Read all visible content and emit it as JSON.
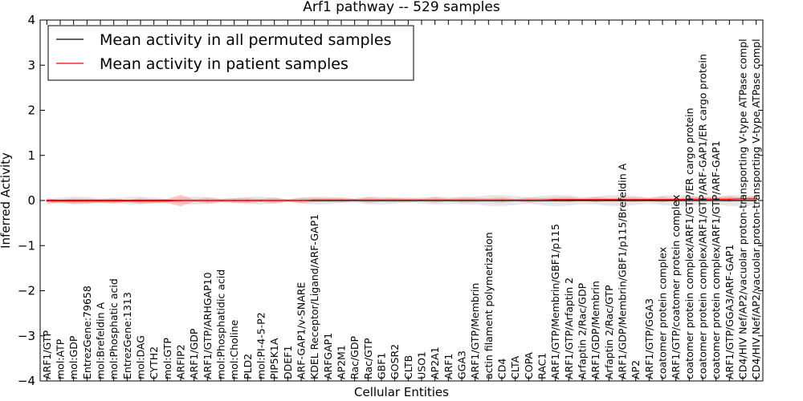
{
  "chart_data": {
    "type": "line",
    "title": "Arf1 pathway -- 529 samples",
    "xlabel": "Cellular Entities",
    "ylabel": "Inferred Activity",
    "ylim": [
      -4,
      4
    ],
    "yticks": [
      -4,
      -3,
      -2,
      -1,
      0,
      1,
      2,
      3,
      4
    ],
    "ytick_labels": [
      "−4",
      "−3",
      "−2",
      "−1",
      "0",
      "1",
      "2",
      "3",
      "4"
    ],
    "grid": false,
    "legend_position": "top-left",
    "categories": [
      "ARF1/GTP",
      "mol:ATP",
      "mol:GDP",
      "EntrezGene:79658",
      "mol:Brefeldin A",
      "mol:Phosphatic acid",
      "EntrezGene:1313",
      "mol:DAG",
      "CYTH2",
      "mol:GTP",
      "ARFIP2",
      "ARF1/GDP",
      "ARF1/GTP/ARHGAP10",
      "mol:Phosphatidic acid",
      "mol:Choline",
      "PLD2",
      "mol:PI-4-5-P2",
      "PIP5K1A",
      "DDEF1",
      "ARF-GAP1/v-SNARE",
      "KDEL Receptor/Ligand/ARF-GAP1",
      "ARFGAP1",
      "AP2M1",
      "Rac/GDP",
      "Rac/GTP",
      "GBF1",
      "GOSR2",
      "CLTB",
      "USO1",
      "AP2A1",
      "ARF1",
      "GGA3",
      "ARF1/GTP/Membrin",
      "actin filament polymerization",
      "CD4",
      "CLTA",
      "COPA",
      "RAC1",
      "ARF1/GTP/Membrin/GBF1/p115",
      "ARF1/GTP/Arfaptin 2",
      "Arfaptin 2/Rac/GDP",
      "ARF1/GDP/Membrin",
      "Arfaptin 2/Rac/GTP",
      "ARF1/GDP/Membrin/GBF1/p115/Brefeldin A",
      "AP2",
      "ARF1/GTP/GGA3",
      "coatomer protein complex",
      "ARF1/GTP/coatomer protein complex",
      "coatomer protein complex/ARF1/GTP/ER cargo protein",
      "coatomer protein complex/ARF1/GTP/ARF-GAP1/ER cargo protein",
      "coatomer protein complex/ARF1/GTP/ARF-GAP1",
      "ARF1/GTP/GGA3/ARF-GAP1",
      "CD4/HIV Nef/AP2/vacuolar proton-transporting V-type ATPase compl",
      "CD4/HIV Nef/AP2/vacuolar proton-transporting V-type ATPase compl"
    ],
    "series": [
      {
        "name": "Mean activity in all permuted samples",
        "color": "#000000",
        "values": [
          0,
          0,
          0,
          0,
          0,
          0,
          0,
          0,
          0,
          0,
          0,
          0,
          0,
          0,
          0,
          0,
          0,
          0,
          0,
          0,
          0,
          0,
          0,
          0,
          0,
          0,
          0,
          0,
          0,
          0,
          0,
          0,
          0,
          0,
          0,
          0,
          0,
          0,
          0,
          0,
          0,
          0,
          0,
          0,
          0,
          0,
          0,
          0,
          0,
          0,
          0,
          0,
          0,
          0
        ]
      },
      {
        "name": "Mean activity in patient samples",
        "color": "#ff0000",
        "values": [
          -0.01,
          -0.01,
          -0.01,
          -0.01,
          -0.01,
          -0.01,
          -0.01,
          -0.01,
          -0.01,
          -0.01,
          0,
          0,
          0,
          0,
          0,
          0,
          0,
          0,
          0,
          0,
          0.01,
          0.01,
          0.01,
          0.01,
          0.01,
          0.01,
          0.01,
          0.01,
          0.01,
          0.01,
          0.01,
          0.01,
          0.01,
          0.01,
          0.01,
          0.01,
          0.01,
          0.01,
          0.02,
          0.02,
          0.02,
          0.02,
          0.02,
          0.02,
          0.02,
          0.02,
          0.02,
          0.02,
          0.03,
          0.03,
          0.03,
          0.03,
          0.04,
          0.04
        ]
      }
    ]
  }
}
